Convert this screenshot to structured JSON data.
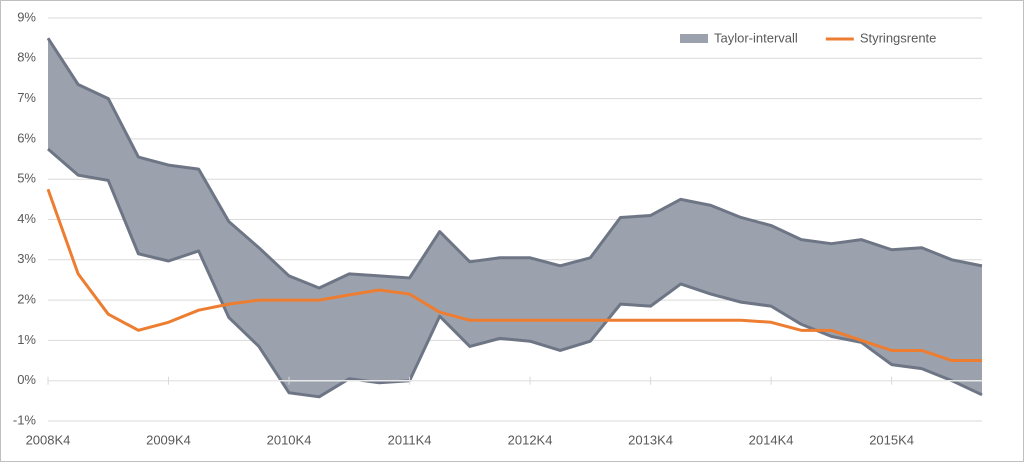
{
  "chart_data": {
    "type": "band-line",
    "categories": [
      "2008K4",
      null,
      null,
      null,
      "2009K4",
      null,
      null,
      null,
      "2010K4",
      null,
      null,
      null,
      "2011K4",
      null,
      null,
      null,
      "2012K4",
      null,
      null,
      null,
      "2013K4",
      null,
      null,
      null,
      "2014K4",
      null,
      null,
      null,
      "2015K4",
      null,
      null,
      null
    ],
    "series": [
      {
        "name": "Taylor-intervall",
        "type": "band",
        "color": "#9ba2ae",
        "edge_color": "#6e7686",
        "upper": [
          8.5,
          7.35,
          7.0,
          5.55,
          5.35,
          5.25,
          3.95,
          3.3,
          2.6,
          2.3,
          2.65,
          2.6,
          2.55,
          3.7,
          2.95,
          3.05,
          3.05,
          2.85,
          3.05,
          4.05,
          4.1,
          4.5,
          4.35,
          4.05,
          3.85,
          3.5,
          3.4,
          3.5,
          3.25,
          3.3,
          3.0,
          2.85
        ],
        "lower": [
          5.75,
          5.1,
          4.97,
          3.15,
          2.97,
          3.22,
          1.57,
          0.85,
          -0.3,
          -0.4,
          0.05,
          -0.05,
          0.0,
          1.6,
          0.85,
          1.05,
          0.98,
          0.75,
          0.98,
          1.9,
          1.85,
          2.4,
          2.15,
          1.95,
          1.85,
          1.4,
          1.1,
          0.95,
          0.4,
          0.3,
          0.0,
          -0.35
        ]
      },
      {
        "name": "Styringsrente",
        "type": "line",
        "color": "#ed7d31",
        "values": [
          4.75,
          2.65,
          1.65,
          1.25,
          1.45,
          1.75,
          1.9,
          2.0,
          2.0,
          2.0,
          2.13,
          2.25,
          2.15,
          1.7,
          1.5,
          1.5,
          1.5,
          1.5,
          1.5,
          1.5,
          1.5,
          1.5,
          1.5,
          1.5,
          1.45,
          1.25,
          1.25,
          1.0,
          0.75,
          0.75,
          0.5,
          0.5
        ]
      }
    ],
    "ylim": [
      -1,
      9
    ],
    "yticks": [
      {
        "value": -1,
        "label": "-1%"
      },
      {
        "value": 0,
        "label": "0%"
      },
      {
        "value": 1,
        "label": "1%"
      },
      {
        "value": 2,
        "label": "2%"
      },
      {
        "value": 3,
        "label": "3%"
      },
      {
        "value": 4,
        "label": "4%"
      },
      {
        "value": 5,
        "label": "5%"
      },
      {
        "value": 6,
        "label": "6%"
      },
      {
        "value": 7,
        "label": "7%"
      },
      {
        "value": 8,
        "label": "8%"
      },
      {
        "value": 9,
        "label": "9%"
      }
    ],
    "grid": true,
    "legend": "top-right"
  }
}
